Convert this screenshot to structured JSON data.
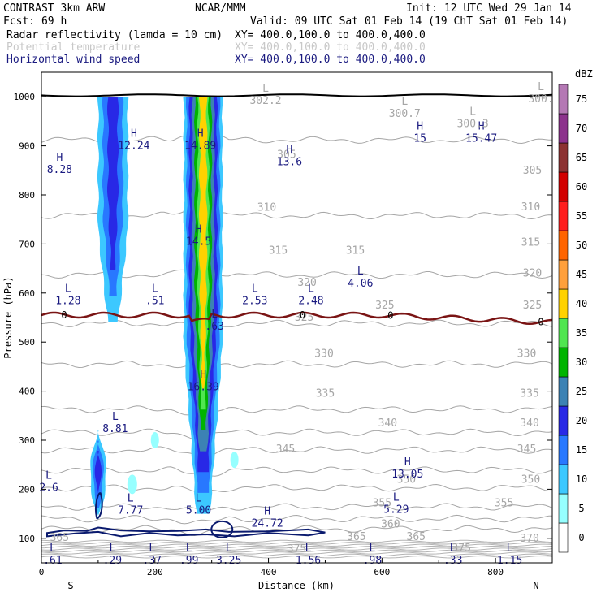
{
  "header": {
    "model": "CONTRAST  3km ARW",
    "center": "NCAR/MMM",
    "init": "Init: 12 UTC Wed 29 Jan 14",
    "fcst": "Fcst:   69 h",
    "valid": "Valid: 09 UTC Sat 01 Feb 14 (19 ChT Sat 01 Feb 14)",
    "fields": [
      {
        "name": "Radar reflectivity (lamda = 10 cm)",
        "xy": "XY= 400.0,100.0 to 400.0,400.0",
        "color": "#000000"
      },
      {
        "name": "Potential temperature",
        "xy": "XY= 400.0,100.0 to 400.0,400.0",
        "color": "#c8c8c8"
      },
      {
        "name": "Horizontal wind speed",
        "xy": "XY= 400.0,100.0 to 400.0,400.0",
        "color": "#1a1a80"
      }
    ]
  },
  "chart_data": {
    "type": "heatmap",
    "title": "Vertical cross-section",
    "xlabel": "Distance (km)",
    "ylabel": "Pressure (hPa)",
    "xlim": [
      0,
      900
    ],
    "ylim": [
      1050,
      50
    ],
    "xticks": [
      "0",
      "200",
      "400",
      "600",
      "800"
    ],
    "yticks": [
      "100",
      "200",
      "300",
      "400",
      "500",
      "600",
      "700",
      "800",
      "900",
      "1000"
    ],
    "x_end_labels": [
      "S",
      "N"
    ],
    "colorbar": {
      "unit": "dBZ",
      "levels": [
        0,
        5,
        10,
        15,
        20,
        25,
        30,
        35,
        40,
        45,
        50,
        55,
        60,
        65,
        70,
        75
      ],
      "colors": [
        "#ffffff",
        "#96ffff",
        "#3cc8ff",
        "#2878ff",
        "#2828e6",
        "#3c82b4",
        "#00b400",
        "#50e650",
        "#ffd200",
        "#ffa03c",
        "#ff6400",
        "#ff1e1e",
        "#d20000",
        "#8c3232",
        "#8c328c",
        "#b478b4"
      ]
    },
    "theta_isolines": [
      {
        "label": "365",
        "p": 119
      },
      {
        "label": "360",
        "p": 140
      },
      {
        "label": "355",
        "p": 164
      },
      {
        "label": "350",
        "p": 203
      },
      {
        "label": "345",
        "p": 239
      },
      {
        "label": "340",
        "p": 280
      },
      {
        "label": "335",
        "p": 316
      },
      {
        "label": "330",
        "p": 363
      },
      {
        "label": "325",
        "p": 455
      },
      {
        "label": "320",
        "p": 538
      },
      {
        "label": "315",
        "p": 637
      },
      {
        "label": "310",
        "p": 758
      },
      {
        "label": "305",
        "p": 912
      }
    ],
    "theta_labels": [
      {
        "text": "375",
        "x": 450,
        "p": 78
      },
      {
        "text": "375",
        "x": 740,
        "p": 80
      },
      {
        "text": "365",
        "x": 32,
        "p": 101
      },
      {
        "text": "365",
        "x": 555,
        "p": 103
      },
      {
        "text": "365",
        "x": 660,
        "p": 103
      },
      {
        "text": "370",
        "x": 860,
        "p": 100
      },
      {
        "text": "360",
        "x": 615,
        "p": 129
      },
      {
        "text": "355",
        "x": 600,
        "p": 172
      },
      {
        "text": "355",
        "x": 815,
        "p": 172
      },
      {
        "text": "350",
        "x": 643,
        "p": 220
      },
      {
        "text": "350",
        "x": 862,
        "p": 220
      },
      {
        "text": "345",
        "x": 430,
        "p": 282
      },
      {
        "text": "345",
        "x": 855,
        "p": 282
      },
      {
        "text": "340",
        "x": 610,
        "p": 335
      },
      {
        "text": "340",
        "x": 860,
        "p": 335
      },
      {
        "text": "335",
        "x": 500,
        "p": 395
      },
      {
        "text": "335",
        "x": 860,
        "p": 395
      },
      {
        "text": "330",
        "x": 498,
        "p": 476
      },
      {
        "text": "330",
        "x": 855,
        "p": 476
      },
      {
        "text": "325",
        "x": 463,
        "p": 550
      },
      {
        "text": "325",
        "x": 605,
        "p": 575
      },
      {
        "text": "325",
        "x": 865,
        "p": 575
      },
      {
        "text": "320",
        "x": 468,
        "p": 621
      },
      {
        "text": "320",
        "x": 865,
        "p": 640
      },
      {
        "text": "315",
        "x": 417,
        "p": 687
      },
      {
        "text": "315",
        "x": 553,
        "p": 687
      },
      {
        "text": "315",
        "x": 862,
        "p": 703
      },
      {
        "text": "310",
        "x": 397,
        "p": 774
      },
      {
        "text": "310",
        "x": 862,
        "p": 775
      },
      {
        "text": "305",
        "x": 865,
        "p": 850
      },
      {
        "text": "305",
        "x": 432,
        "p": 882
      }
    ],
    "reflectivity_cells": [
      {
        "name": "anvil-left",
        "x": 100,
        "half_width": 14,
        "p_top": 140,
        "p_bottom": 320,
        "max_dbz": 20
      },
      {
        "name": "shallow-left",
        "x": 126,
        "half_width": 26,
        "p_top": 540,
        "p_bottom": 1000,
        "max_dbz": 20
      },
      {
        "name": "deep-core",
        "x": 285,
        "half_width": 34,
        "p_top": 150,
        "p_bottom": 1000,
        "max_dbz": 40
      }
    ],
    "zero_isotherm": {
      "label": "0",
      "p": 555
    },
    "extrema": [
      {
        "type": "L",
        "value": ".61",
        "x": 20,
        "p": 80
      },
      {
        "type": "L",
        "value": ".29",
        "x": 125,
        "p": 80
      },
      {
        "type": "L",
        "value": ".37",
        "x": 195,
        "p": 80
      },
      {
        "type": "L",
        "value": ".99",
        "x": 260,
        "p": 80
      },
      {
        "type": "L",
        "value": "3.25",
        "x": 330,
        "p": 80
      },
      {
        "type": "L",
        "value": "1.56",
        "x": 470,
        "p": 80
      },
      {
        "type": "L",
        "value": ".98",
        "x": 583,
        "p": 80
      },
      {
        "type": "L",
        "value": ".33",
        "x": 725,
        "p": 80
      },
      {
        "type": "L",
        "value": "1.15",
        "x": 825,
        "p": 80
      },
      {
        "type": "H",
        "value": "24.72",
        "x": 398,
        "p": 155
      },
      {
        "type": "L",
        "value": "7.77",
        "x": 157,
        "p": 182
      },
      {
        "type": "L",
        "value": "5.00",
        "x": 277,
        "p": 182
      },
      {
        "type": "L",
        "value": "5.29",
        "x": 625,
        "p": 183
      },
      {
        "type": "L",
        "value": "2.6",
        "x": 13,
        "p": 228
      },
      {
        "type": "H",
        "value": "13.05",
        "x": 645,
        "p": 255
      },
      {
        "type": "L",
        "value": "8.81",
        "x": 130,
        "p": 348
      },
      {
        "type": "H",
        "value": "16.39",
        "x": 285,
        "p": 433
      },
      {
        "type": "L",
        "value": "1.28",
        "x": 47,
        "p": 609
      },
      {
        "type": "L",
        "value": ".51",
        "x": 200,
        "p": 609
      },
      {
        "type": "L",
        "value": ".63",
        "x": 305,
        "p": 557
      },
      {
        "type": "L",
        "value": "2.53",
        "x": 376,
        "p": 609
      },
      {
        "type": "L",
        "value": "2.48",
        "x": 475,
        "p": 609
      },
      {
        "type": "L",
        "value": "4.06",
        "x": 562,
        "p": 644
      },
      {
        "type": "H",
        "value": "14.5",
        "x": 277,
        "p": 730
      },
      {
        "type": "H",
        "value": "8.28",
        "x": 32,
        "p": 876
      },
      {
        "type": "H",
        "value": "12.24",
        "x": 163,
        "p": 925
      },
      {
        "type": "H",
        "value": "14.89",
        "x": 280,
        "p": 925
      },
      {
        "type": "H",
        "value": "13.6",
        "x": 437,
        "p": 892
      },
      {
        "type": "H",
        "value": "15",
        "x": 667,
        "p": 940
      },
      {
        "type": "H",
        "value": "15.47",
        "x": 775,
        "p": 940
      }
    ],
    "surface_low_labels": [
      {
        "type": "L",
        "value": "302.2",
        "x": 395,
        "p": 1017
      },
      {
        "type": "L",
        "value": "300.7",
        "x": 640,
        "p": 990
      },
      {
        "type": "L",
        "value": "300.3",
        "x": 760,
        "p": 970
      },
      {
        "type": "L",
        "value": "300.",
        "x": 880,
        "p": 1020
      }
    ]
  }
}
